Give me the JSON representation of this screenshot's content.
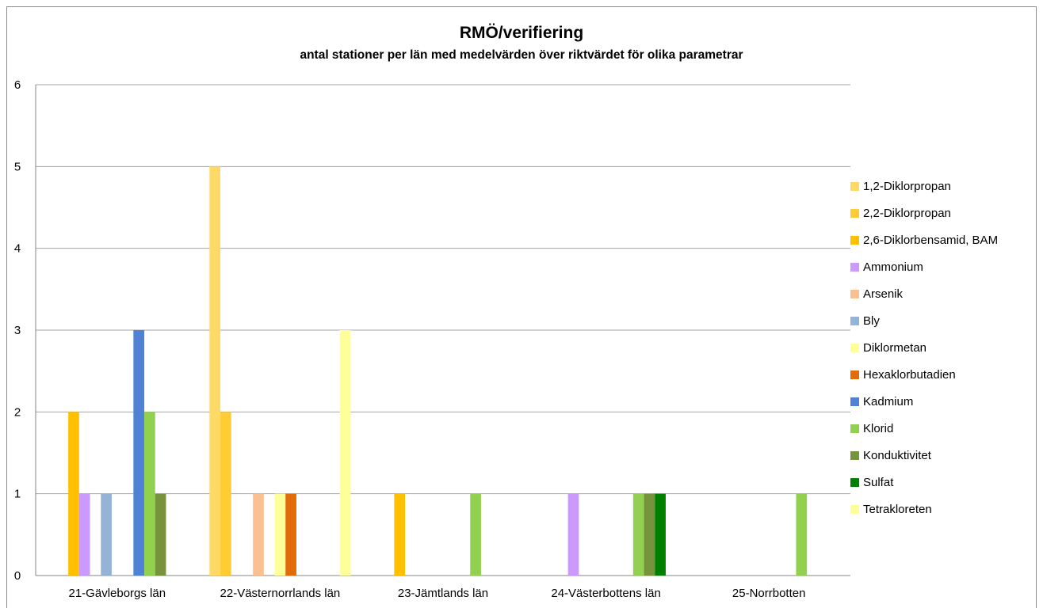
{
  "chart_data": {
    "type": "bar",
    "title": "RMÖ/verifiering",
    "subtitle": "antal stationer per län med medelvärden över riktvärdet för olika parametrar",
    "xlabel": "",
    "ylabel": "",
    "ylim": [
      0,
      6
    ],
    "yticks": [
      "0",
      "1",
      "2",
      "3",
      "4",
      "5",
      "6"
    ],
    "grid": true,
    "legend_position": "right",
    "categories": [
      "21-Gävleborgs län",
      "22-Västernorrlands län",
      "23-Jämtlands län",
      "24-Västerbottens län",
      "25-Norrbotten"
    ],
    "series": [
      {
        "name": "1,2-Diklorpropan",
        "color": "#FFD966",
        "values": [
          0,
          5,
          0,
          0,
          0
        ]
      },
      {
        "name": "2,2-Diklorpropan",
        "color": "#FFCC33",
        "values": [
          0,
          2,
          0,
          0,
          0
        ]
      },
      {
        "name": "2,6-Diklorbensamid, BAM",
        "color": "#FFC000",
        "values": [
          2,
          0,
          1,
          0,
          0
        ]
      },
      {
        "name": "Ammonium",
        "color": "#CC99FF",
        "values": [
          1,
          0,
          0,
          1,
          0
        ]
      },
      {
        "name": "Arsenik",
        "color": "#FAC090",
        "values": [
          0,
          1,
          0,
          0,
          0
        ]
      },
      {
        "name": "Bly",
        "color": "#95B3D7",
        "values": [
          1,
          0,
          0,
          0,
          0
        ]
      },
      {
        "name": "Diklormetan",
        "color": "#FFFF99",
        "values": [
          0,
          1,
          0,
          0,
          0
        ]
      },
      {
        "name": "Hexaklorbutadien",
        "color": "#E36C0A",
        "values": [
          0,
          1,
          0,
          0,
          0
        ]
      },
      {
        "name": "Kadmium",
        "color": "#4F81D4",
        "values": [
          3,
          0,
          0,
          0,
          0
        ]
      },
      {
        "name": "Klorid",
        "color": "#92D050",
        "values": [
          2,
          0,
          1,
          1,
          1
        ]
      },
      {
        "name": "Konduktivitet",
        "color": "#77933C",
        "values": [
          1,
          0,
          0,
          1,
          0
        ]
      },
      {
        "name": "Sulfat",
        "color": "#008000",
        "values": [
          0,
          0,
          0,
          1,
          0
        ]
      },
      {
        "name": "Tetrakloreten",
        "color": "#FFFF99",
        "values": [
          0,
          3,
          0,
          0,
          0
        ]
      }
    ]
  }
}
